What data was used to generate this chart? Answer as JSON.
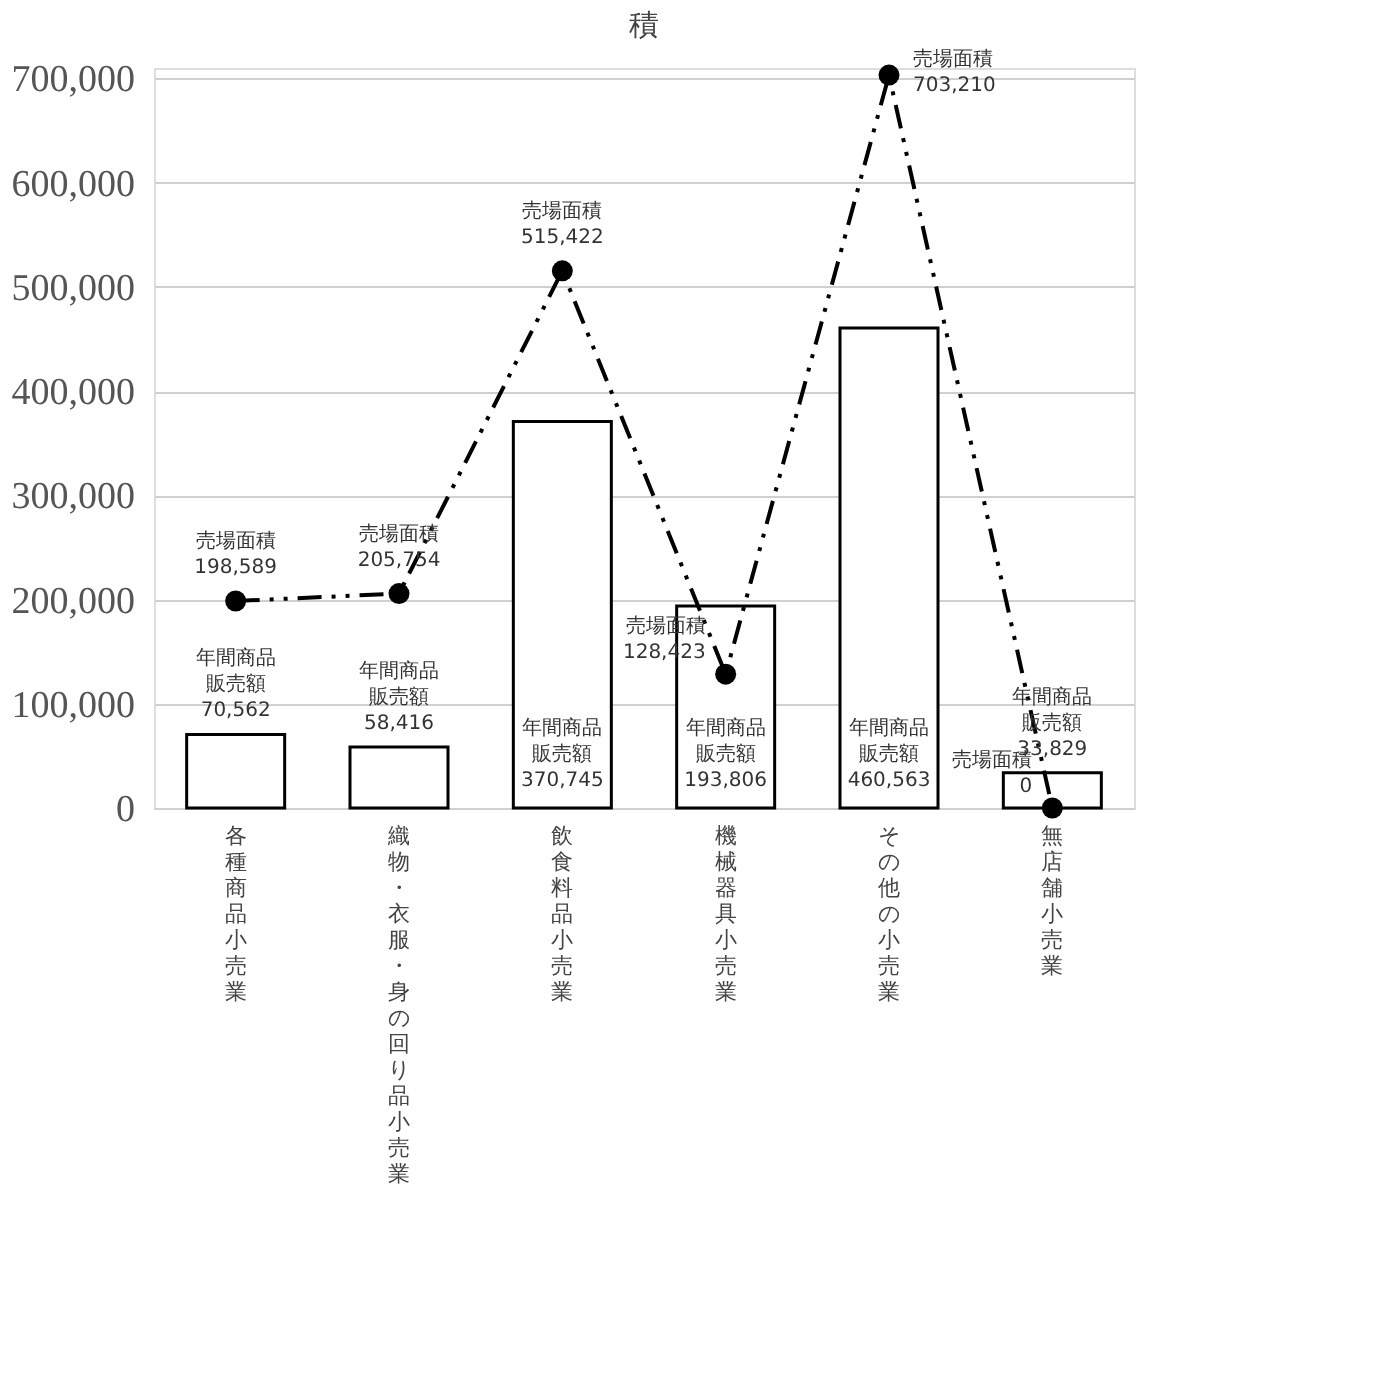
{
  "chart_data": {
    "type": "bar",
    "title": "積",
    "categories": [
      "各種商品小売業",
      "織物・衣服・身の回り品小売業",
      "飲食料品小売業",
      "機械器具小売業",
      "その他の小売業",
      "無店舗小売業"
    ],
    "series": [
      {
        "name": "年間商品販売額",
        "color": "#ffffff",
        "values": [
          70562,
          58416,
          370745,
          193806,
          460563,
          33829
        ],
        "value_labels": [
          "70,562",
          "58,416",
          "370,745",
          "193,806",
          "460,563",
          "33,829"
        ]
      },
      {
        "name": "売場面積",
        "type": "line",
        "color": "#000000",
        "marker": "circle",
        "line_style": "dashed",
        "values": [
          198589,
          205754,
          515422,
          128423,
          703210,
          0
        ],
        "value_labels": [
          "198,589",
          "205,754",
          "515,422",
          "128,423",
          "703,210",
          "0"
        ]
      }
    ],
    "ylim": [
      0,
      710000
    ],
    "yticks": [
      0,
      {
        "value": 100000,
        "label": "100,000"
      },
      {
        "value": 200000,
        "label": "200,000"
      },
      {
        "value": 300000,
        "label": "300,000"
      },
      {
        "value": 400000,
        "label": "400,000"
      },
      {
        "value": 500000,
        "label": "500,000"
      },
      {
        "value": 600000,
        "label": "600,000"
      },
      {
        "value": 700000,
        "label": "700,000"
      }
    ],
    "grid": "y"
  }
}
